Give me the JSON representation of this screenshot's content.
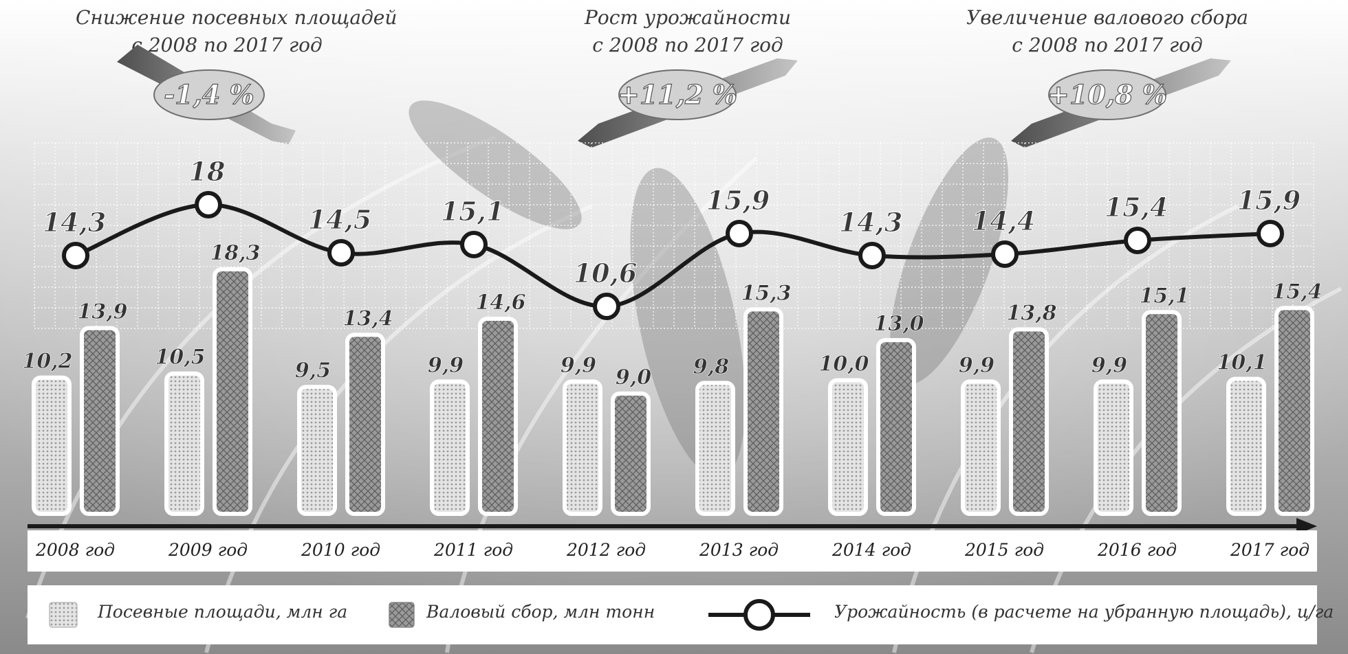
{
  "header_notes": [
    {
      "line1": "Снижение посевных площадей",
      "line2": "с 2008 по 2017 год",
      "value": "-1,4 %",
      "trend": "down"
    },
    {
      "line1": "Рост урожайности",
      "line2": "с 2008 по 2017 год",
      "value": "+11,2 %",
      "trend": "up"
    },
    {
      "line1": "Увеличение валового сбора",
      "line2": "с 2008 по 2017 год",
      "value": "+10,8 %",
      "trend": "up"
    }
  ],
  "legend": {
    "area": "Посевные площади, млн га",
    "harvest": "Валовый сбор, млн тонн",
    "yield": "Урожайность (в расчете на убранную площадь), ц/га"
  },
  "colors": {
    "area_fill": "#dcdcdc",
    "harvest_fill": "#8f8f8f",
    "line": "#1a1a1a",
    "bar_border": "#ffffff"
  },
  "chart_data": {
    "type": "bar",
    "categories": [
      "2008 год",
      "2009 год",
      "2010 год",
      "2011 год",
      "2012 год",
      "2013 год",
      "2014 год",
      "2015 год",
      "2016 год",
      "2017 год"
    ],
    "series": [
      {
        "name": "Посевные площади, млн га",
        "type": "bar",
        "values": [
          10.2,
          10.5,
          9.5,
          9.9,
          9.9,
          9.8,
          10.0,
          9.9,
          9.9,
          10.1
        ],
        "labels": [
          "10,2",
          "10,5",
          "9,5",
          "9,9",
          "9,9",
          "9,8",
          "10,0",
          "9,9",
          "9,9",
          "10,1"
        ]
      },
      {
        "name": "Валовый сбор, млн тонн",
        "type": "bar",
        "values": [
          13.9,
          18.3,
          13.4,
          14.6,
          9.0,
          15.3,
          13.0,
          13.8,
          15.1,
          15.4
        ],
        "labels": [
          "13,9",
          "18,3",
          "13,4",
          "14,6",
          "9,0",
          "15,3",
          "13,0",
          "13,8",
          "15,1",
          "15,4"
        ]
      },
      {
        "name": "Урожайность (в расчете на убранную площадь), ц/га",
        "type": "line",
        "values": [
          14.3,
          18.0,
          14.5,
          15.1,
          10.6,
          15.9,
          14.3,
          14.4,
          15.4,
          15.9
        ],
        "labels": [
          "14,3",
          "18",
          "14,5",
          "15,1",
          "10,6",
          "15,9",
          "14,3",
          "14,4",
          "15,4",
          "15,9"
        ]
      }
    ],
    "grid": true,
    "legend_position": "bottom"
  }
}
